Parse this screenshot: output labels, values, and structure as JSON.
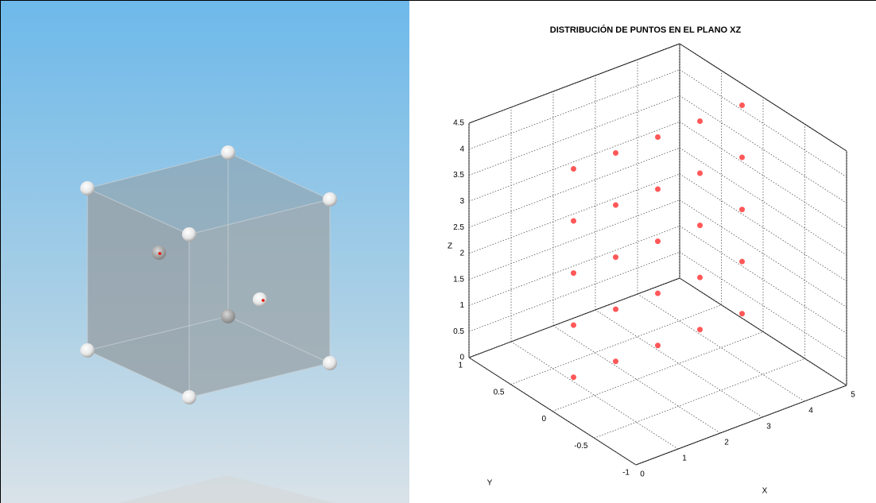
{
  "chart_data": {
    "type": "scatter3d",
    "title": "DISTRIBUCIÓN DE PUNTOS EN EL PLANO XZ",
    "x_label": "X",
    "y_label": "Y",
    "z_label": "Z",
    "x": [
      0.5,
      0.5,
      0.5,
      0.5,
      0.5,
      1.5,
      1.5,
      1.5,
      1.5,
      1.5,
      2.5,
      2.5,
      2.5,
      2.5,
      2.5,
      3.5,
      3.5,
      3.5,
      3.5,
      3.5,
      4.5,
      4.5,
      4.5,
      4.5,
      4.5
    ],
    "y": [
      0,
      0,
      0,
      0,
      0,
      0,
      0,
      0,
      0,
      0,
      0,
      0,
      0,
      0,
      0,
      0,
      0,
      0,
      0,
      0,
      0,
      0,
      0,
      0,
      0
    ],
    "z": [
      0.5,
      1.5,
      2.5,
      3.5,
      4.5,
      0.5,
      1.5,
      2.5,
      3.5,
      4.5,
      0.5,
      1.5,
      2.5,
      3.5,
      4.5,
      0.5,
      1.5,
      2.5,
      3.5,
      4.5,
      0.5,
      1.5,
      2.5,
      3.5,
      4.5
    ],
    "color": "#ff3b3b",
    "xlim": [
      0,
      5
    ],
    "ylim": [
      -1,
      1
    ],
    "zlim": [
      0,
      4.5
    ],
    "xticks": [
      0,
      1,
      2,
      3,
      4,
      5
    ],
    "yticks": [
      -1,
      -0.5,
      0,
      0.5,
      1
    ],
    "zticks": [
      0,
      0.5,
      1,
      1.5,
      2,
      2.5,
      3,
      3.5,
      4,
      4.5
    ],
    "grid": true
  }
}
